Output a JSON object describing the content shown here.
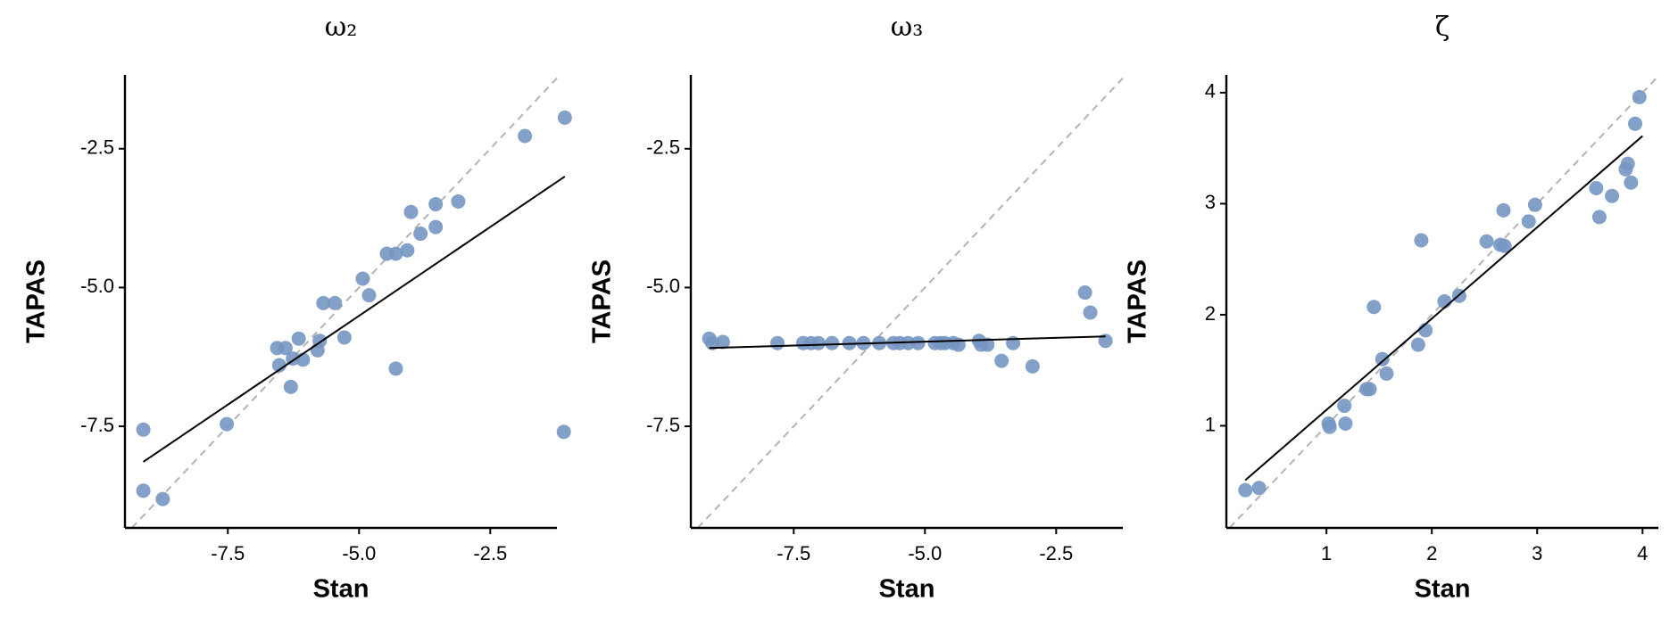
{
  "chart_data": [
    {
      "type": "scatter",
      "title": "ω₂",
      "xlabel": "Stan",
      "ylabel": "TAPAS",
      "color": "#7596c2",
      "x": [
        -9.11,
        -9.11,
        -8.74,
        -7.52,
        -6.56,
        -6.4,
        -6.52,
        -6.26,
        -6.15,
        -6.07,
        -6.3,
        -5.79,
        -5.75,
        -5.68,
        -5.46,
        -5.28,
        -4.93,
        -4.81,
        -4.47,
        -4.3,
        -4.08,
        -3.83,
        -4.01,
        -3.54,
        -3.54,
        -3.11,
        -4.3,
        -1.84,
        -1.08,
        -1.1
      ],
      "values": [
        -7.56,
        -8.66,
        -8.81,
        -7.46,
        -6.09,
        -6.09,
        -6.4,
        -6.28,
        -5.92,
        -6.3,
        -6.79,
        -6.13,
        -5.96,
        -5.28,
        -5.28,
        -5.9,
        -4.84,
        -5.14,
        -4.39,
        -4.39,
        -4.33,
        -4.03,
        -3.64,
        -3.91,
        -3.5,
        -3.45,
        -6.46,
        -2.27,
        -1.94,
        -7.6
      ],
      "trend": {
        "x": [
          -9.11,
          -1.08
        ],
        "values": [
          -8.14,
          -3.0
        ]
      },
      "identity_line": true,
      "xlim": [
        -9.46,
        -1.23
      ],
      "ylim": [
        -9.33,
        -1.17
      ],
      "xticks": [
        -7.5,
        {
          "value": -5,
          "label": "-5.0"
        },
        -2.5
      ],
      "yticks": [
        -2.5,
        {
          "value": -5,
          "label": "-5.0"
        },
        -7.5
      ]
    },
    {
      "type": "scatter",
      "title": "ω₃",
      "xlabel": "Stan",
      "ylabel": "TAPAS",
      "color": "#7596c2",
      "x": [
        -9.11,
        -9.05,
        -8.85,
        -7.81,
        -7.32,
        -7.17,
        -7.03,
        -6.77,
        -6.44,
        -6.17,
        -5.87,
        -5.6,
        -5.48,
        -5.32,
        -5.13,
        -4.81,
        -4.7,
        -4.62,
        -4.46,
        -4.36,
        -3.97,
        -3.93,
        -3.81,
        -3.54,
        -3.32,
        -2.95,
        -1.95,
        -1.85,
        -1.56
      ],
      "values": [
        -5.92,
        -6.0,
        -5.98,
        -6.0,
        -6.0,
        -6.0,
        -6.0,
        -6.0,
        -6.0,
        -6.0,
        -6.0,
        -6.0,
        -6.0,
        -6.0,
        -6.0,
        -6.0,
        -6.0,
        -6.0,
        -6.0,
        -6.03,
        -5.96,
        -6.03,
        -6.03,
        -6.32,
        -6.0,
        -6.42,
        -5.09,
        -5.45,
        -5.96
      ],
      "trend": {
        "x": [
          -9.11,
          -1.56
        ],
        "values": [
          -6.09,
          -5.88
        ]
      },
      "identity_line": true,
      "xlim": [
        -9.46,
        -1.23
      ],
      "ylim": [
        -9.33,
        -1.17
      ],
      "xticks": [
        -7.5,
        {
          "value": -5,
          "label": "-5.0"
        },
        -2.5
      ],
      "yticks": [
        -2.5,
        {
          "value": -5,
          "label": "-5.0"
        },
        -7.5
      ]
    },
    {
      "type": "scatter",
      "title": "ζ",
      "xlabel": "Stan",
      "ylabel": "TAPAS",
      "color": "#7596c2",
      "x": [
        0.23,
        0.36,
        1.02,
        1.03,
        1.17,
        1.18,
        1.38,
        1.41,
        1.45,
        1.53,
        1.57,
        1.87,
        1.94,
        1.9,
        2.12,
        2.26,
        2.52,
        2.65,
        2.69,
        2.68,
        2.92,
        2.98,
        3.56,
        3.59,
        3.71,
        3.84,
        3.86,
        3.89,
        3.93,
        3.97
      ],
      "values": [
        0.42,
        0.44,
        1.02,
        0.99,
        1.18,
        1.02,
        1.33,
        1.33,
        2.07,
        1.6,
        1.47,
        1.73,
        1.86,
        2.67,
        2.12,
        2.17,
        2.66,
        2.63,
        2.62,
        2.94,
        2.84,
        2.99,
        3.14,
        2.88,
        3.07,
        3.31,
        3.36,
        3.19,
        3.72,
        3.96
      ],
      "trend": {
        "x": [
          0.23,
          4.0
        ],
        "values": [
          0.51,
          3.61
        ]
      },
      "identity_line": true,
      "xlim": [
        0.05,
        4.15
      ],
      "ylim": [
        0.08,
        4.16
      ],
      "xticks": [
        1,
        2,
        3,
        4
      ],
      "yticks": [
        1,
        2,
        3,
        4
      ]
    }
  ]
}
